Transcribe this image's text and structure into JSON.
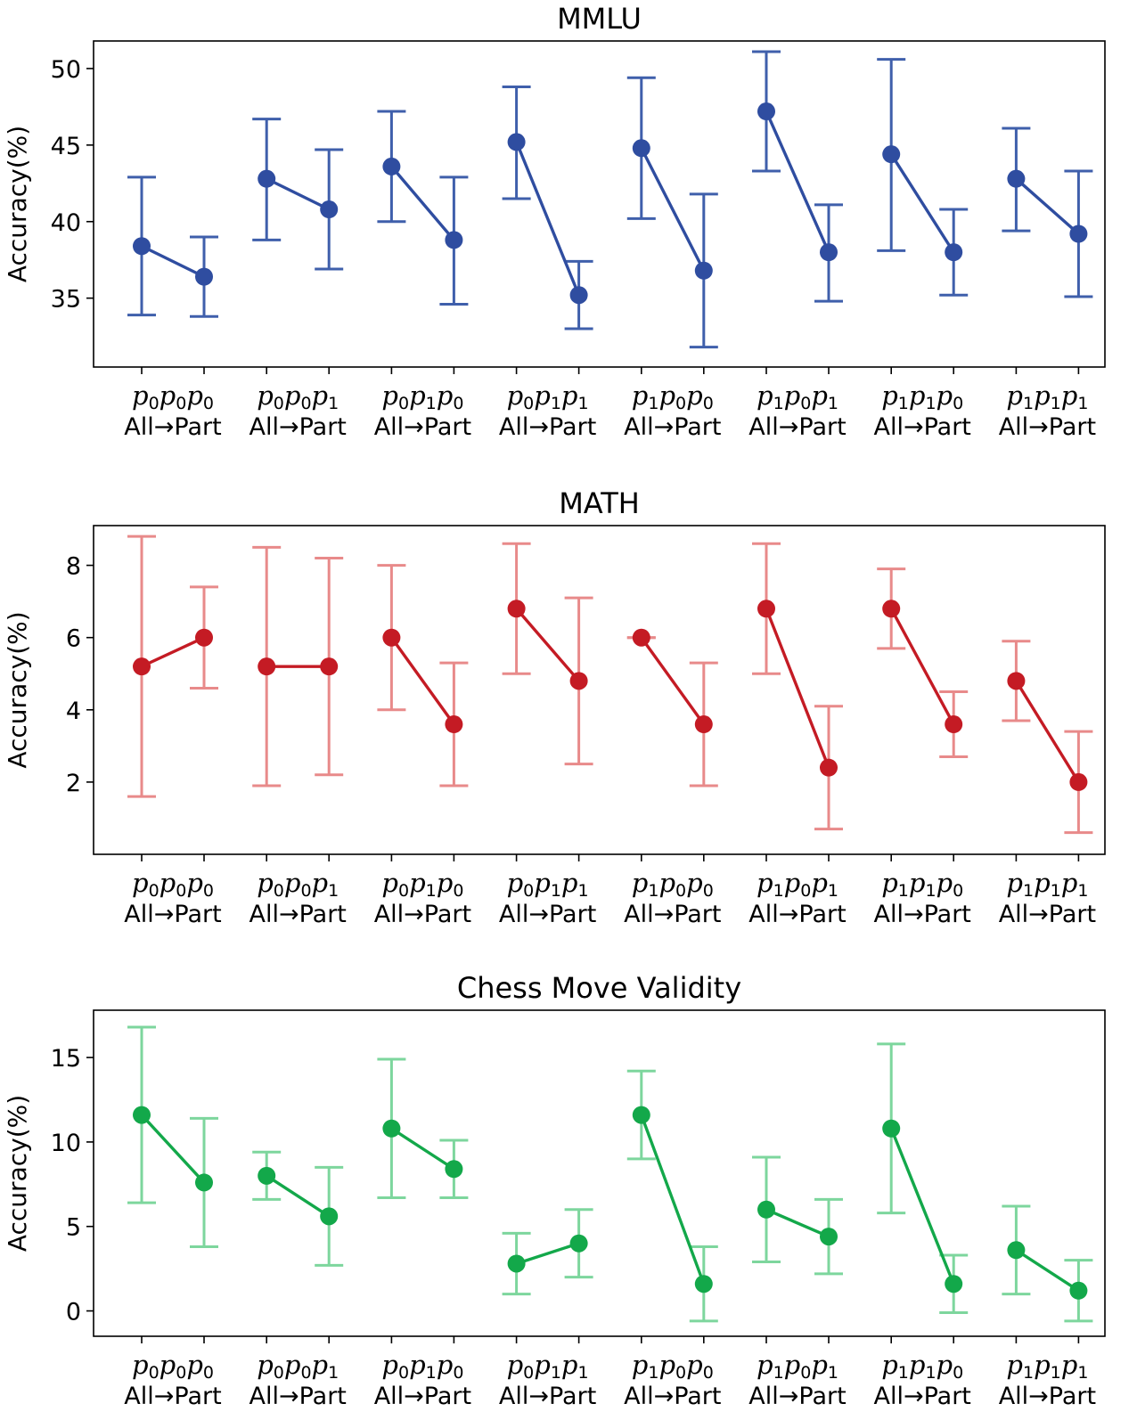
{
  "chart_data": [
    {
      "type": "line",
      "title": "MMLU",
      "ylabel": "Accuracy(%)",
      "ylim": [
        30.5,
        51.8
      ],
      "yticks": [
        35,
        40,
        45,
        50
      ],
      "line_color": "#2f4da0",
      "error_color": "#3f5fab",
      "categories": [
        "p0p0p0",
        "p0p0p1",
        "p0p1p0",
        "p0p1p1",
        "p1p0p0",
        "p1p0p1",
        "p1p1p0",
        "p1p1p1"
      ],
      "category_labels": [
        {
          "line1": "p0p0p0",
          "line2": "All→Part"
        },
        {
          "line1": "p0p0p1",
          "line2": "All→Part"
        },
        {
          "line1": "p0p1p0",
          "line2": "All→Part"
        },
        {
          "line1": "p0p1p1",
          "line2": "All→Part"
        },
        {
          "line1": "p1p0p0",
          "line2": "All→Part"
        },
        {
          "line1": "p1p0p1",
          "line2": "All→Part"
        },
        {
          "line1": "p1p1p0",
          "line2": "All→Part"
        },
        {
          "line1": "p1p1p1",
          "line2": "All→Part"
        }
      ],
      "pairs": [
        {
          "all": 38.4,
          "all_err": [
            33.9,
            42.9
          ],
          "part": 36.4,
          "part_err": [
            33.8,
            39.0
          ]
        },
        {
          "all": 42.8,
          "all_err": [
            38.8,
            46.7
          ],
          "part": 40.8,
          "part_err": [
            36.9,
            44.7
          ]
        },
        {
          "all": 43.6,
          "all_err": [
            40.0,
            47.2
          ],
          "part": 38.8,
          "part_err": [
            34.6,
            42.9
          ]
        },
        {
          "all": 45.2,
          "all_err": [
            41.5,
            48.8
          ],
          "part": 35.2,
          "part_err": [
            33.0,
            37.4
          ]
        },
        {
          "all": 44.8,
          "all_err": [
            40.2,
            49.4
          ],
          "part": 36.8,
          "part_err": [
            31.8,
            41.8
          ]
        },
        {
          "all": 47.2,
          "all_err": [
            43.3,
            51.1
          ],
          "part": 38.0,
          "part_err": [
            34.8,
            41.1
          ]
        },
        {
          "all": 44.4,
          "all_err": [
            38.1,
            50.6
          ],
          "part": 38.0,
          "part_err": [
            35.2,
            40.8
          ]
        },
        {
          "all": 42.8,
          "all_err": [
            39.4,
            46.1
          ],
          "part": 39.2,
          "part_err": [
            35.1,
            43.3
          ]
        }
      ]
    },
    {
      "type": "line",
      "title": "MATH",
      "ylabel": "Accuracy(%)",
      "ylim": [
        0.0,
        9.1
      ],
      "yticks": [
        2,
        4,
        6,
        8
      ],
      "line_color": "#c41b24",
      "error_color": "#e88a8a",
      "categories": [
        "p0p0p0",
        "p0p0p1",
        "p0p1p0",
        "p0p1p1",
        "p1p0p0",
        "p1p0p1",
        "p1p1p0",
        "p1p1p1"
      ],
      "category_labels": [
        {
          "line1": "p0p0p0",
          "line2": "All→Part"
        },
        {
          "line1": "p0p0p1",
          "line2": "All→Part"
        },
        {
          "line1": "p0p1p0",
          "line2": "All→Part"
        },
        {
          "line1": "p0p1p1",
          "line2": "All→Part"
        },
        {
          "line1": "p1p0p0",
          "line2": "All→Part"
        },
        {
          "line1": "p1p0p1",
          "line2": "All→Part"
        },
        {
          "line1": "p1p1p0",
          "line2": "All→Part"
        },
        {
          "line1": "p1p1p1",
          "line2": "All→Part"
        }
      ],
      "pairs": [
        {
          "all": 5.2,
          "all_err": [
            1.6,
            8.8
          ],
          "part": 6.0,
          "part_err": [
            4.6,
            7.4
          ]
        },
        {
          "all": 5.2,
          "all_err": [
            1.9,
            8.5
          ],
          "part": 5.2,
          "part_err": [
            2.2,
            8.2
          ]
        },
        {
          "all": 6.0,
          "all_err": [
            4.0,
            8.0
          ],
          "part": 3.6,
          "part_err": [
            1.9,
            5.3
          ]
        },
        {
          "all": 6.8,
          "all_err": [
            5.0,
            8.6
          ],
          "part": 4.8,
          "part_err": [
            2.5,
            7.1
          ]
        },
        {
          "all": 6.0,
          "all_err": [
            6.0,
            6.0
          ],
          "part": 3.6,
          "part_err": [
            1.9,
            5.3
          ]
        },
        {
          "all": 6.8,
          "all_err": [
            5.0,
            8.6
          ],
          "part": 2.4,
          "part_err": [
            0.7,
            4.1
          ]
        },
        {
          "all": 6.8,
          "all_err": [
            5.7,
            7.9
          ],
          "part": 3.6,
          "part_err": [
            2.7,
            4.5
          ]
        },
        {
          "all": 4.8,
          "all_err": [
            3.7,
            5.9
          ],
          "part": 2.0,
          "part_err": [
            0.6,
            3.4
          ]
        }
      ]
    },
    {
      "type": "line",
      "title": "Chess Move Validity",
      "ylabel": "Accuracy(%)",
      "ylim": [
        -1.5,
        17.8
      ],
      "yticks": [
        0,
        5,
        10,
        15
      ],
      "line_color": "#13a84a",
      "error_color": "#7dd69d",
      "categories": [
        "p0p0p0",
        "p0p0p1",
        "p0p1p0",
        "p0p1p1",
        "p1p0p0",
        "p1p0p1",
        "p1p1p0",
        "p1p1p1"
      ],
      "category_labels": [
        {
          "line1": "p0p0p0",
          "line2": "All→Part"
        },
        {
          "line1": "p0p0p1",
          "line2": "All→Part"
        },
        {
          "line1": "p0p1p0",
          "line2": "All→Part"
        },
        {
          "line1": "p0p1p1",
          "line2": "All→Part"
        },
        {
          "line1": "p1p0p0",
          "line2": "All→Part"
        },
        {
          "line1": "p1p0p1",
          "line2": "All→Part"
        },
        {
          "line1": "p1p1p0",
          "line2": "All→Part"
        },
        {
          "line1": "p1p1p1",
          "line2": "All→Part"
        }
      ],
      "pairs": [
        {
          "all": 11.6,
          "all_err": [
            6.4,
            16.8
          ],
          "part": 7.6,
          "part_err": [
            3.8,
            11.4
          ]
        },
        {
          "all": 8.0,
          "all_err": [
            6.6,
            9.4
          ],
          "part": 5.6,
          "part_err": [
            2.7,
            8.5
          ]
        },
        {
          "all": 10.8,
          "all_err": [
            6.7,
            14.9
          ],
          "part": 8.4,
          "part_err": [
            6.7,
            10.1
          ]
        },
        {
          "all": 2.8,
          "all_err": [
            1.0,
            4.6
          ],
          "part": 4.0,
          "part_err": [
            2.0,
            6.0
          ]
        },
        {
          "all": 11.6,
          "all_err": [
            9.0,
            14.2
          ],
          "part": 1.6,
          "part_err": [
            -0.6,
            3.8
          ]
        },
        {
          "all": 6.0,
          "all_err": [
            2.9,
            9.1
          ],
          "part": 4.4,
          "part_err": [
            2.2,
            6.6
          ]
        },
        {
          "all": 10.8,
          "all_err": [
            5.8,
            15.8
          ],
          "part": 1.6,
          "part_err": [
            -0.1,
            3.3
          ]
        },
        {
          "all": 3.6,
          "all_err": [
            1.0,
            6.2
          ],
          "part": 1.2,
          "part_err": [
            -0.6,
            3.0
          ]
        }
      ]
    }
  ]
}
